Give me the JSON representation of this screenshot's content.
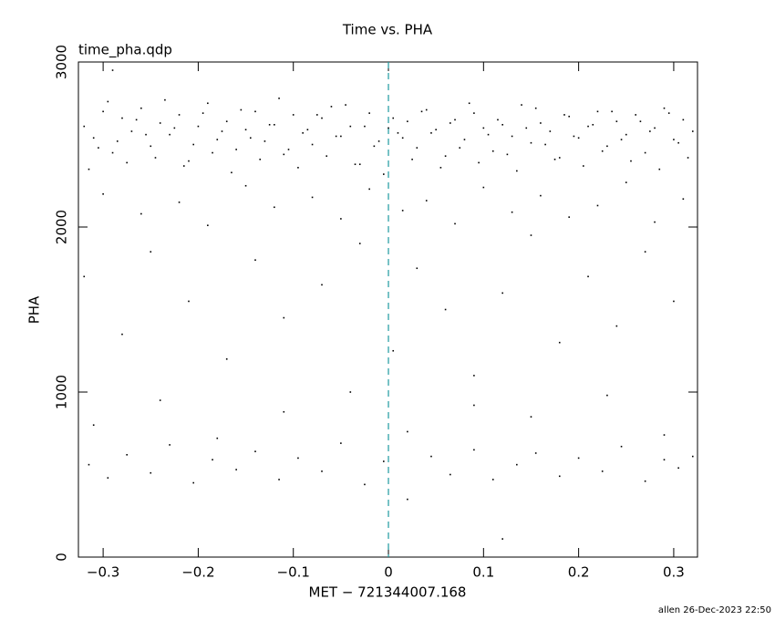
{
  "chart_data": {
    "type": "scatter",
    "title": "Time vs. PHA",
    "annotation": "time_pha.qdp",
    "x_label": "MET − 721344007.168",
    "y_label": "PHA",
    "footer": "allen 26-Dec-2023 22:50",
    "xlim": [
      -0.326,
      0.325
    ],
    "ylim": [
      0,
      3000
    ],
    "xticks": [
      {
        "value": -0.3,
        "label": "−0.3"
      },
      {
        "value": -0.2,
        "label": "−0.2"
      },
      {
        "value": -0.1,
        "label": "−0.1"
      },
      0,
      {
        "value": 0.1,
        "label": "0.1"
      },
      {
        "value": 0.2,
        "label": "0.2"
      },
      {
        "value": 0.3,
        "label": "0.3"
      }
    ],
    "yticks": [
      0,
      1000,
      2000,
      3000
    ],
    "vline": {
      "x": 0,
      "color": "#1e9aa0"
    },
    "series": [
      {
        "color": "#000000",
        "x": [
          -0.32,
          -0.31,
          -0.3,
          -0.29,
          -0.28,
          -0.27,
          -0.26,
          -0.25,
          -0.24,
          -0.23,
          -0.22,
          -0.21,
          -0.2,
          -0.19,
          -0.18,
          -0.17,
          -0.16,
          -0.15,
          -0.14,
          -0.13,
          -0.12,
          -0.11,
          -0.1,
          -0.09,
          -0.08,
          -0.07,
          -0.06,
          -0.05,
          -0.04,
          -0.03,
          -0.02,
          -0.01,
          0,
          0.01,
          0.02,
          0.03,
          0.04,
          0.05,
          0.06,
          0.07,
          0.08,
          0.09,
          0.1,
          0.11,
          0.12,
          0.13,
          0.14,
          0.15,
          0.16,
          0.17,
          0.18,
          0.19,
          0.2,
          0.21,
          0.22,
          0.23,
          0.24,
          0.25,
          0.26,
          0.27,
          0.28,
          0.29,
          0.3,
          0.31,
          0.32,
          -0.315,
          -0.305,
          -0.295,
          -0.285,
          -0.275,
          -0.265,
          -0.255,
          -0.245,
          -0.235,
          -0.225,
          -0.215,
          -0.205,
          -0.195,
          -0.185,
          -0.175,
          -0.165,
          -0.155,
          -0.145,
          -0.135,
          -0.125,
          -0.115,
          -0.105,
          -0.095,
          -0.085,
          -0.075,
          -0.065,
          -0.055,
          -0.045,
          -0.035,
          -0.025,
          -0.015,
          -0.005,
          0.005,
          0.015,
          0.025,
          0.035,
          0.045,
          0.055,
          0.065,
          0.075,
          0.085,
          0.095,
          0.105,
          0.115,
          0.125,
          0.135,
          0.145,
          0.155,
          0.165,
          0.175,
          0.185,
          0.195,
          0.205,
          0.215,
          0.225,
          0.235,
          0.245,
          0.255,
          0.265,
          0.275,
          0.285,
          0.295,
          0.305,
          0.315,
          -0.3,
          -0.26,
          -0.22,
          -0.19,
          -0.15,
          -0.12,
          -0.08,
          -0.05,
          -0.02,
          0.015,
          0.04,
          0.07,
          0.1,
          0.13,
          0.16,
          0.19,
          0.22,
          0.25,
          0.28,
          0.31,
          -0.32,
          -0.28,
          -0.25,
          -0.21,
          -0.17,
          -0.14,
          -0.11,
          -0.07,
          -0.03,
          0.005,
          0.03,
          0.06,
          0.09,
          0.12,
          0.15,
          0.18,
          0.21,
          0.24,
          0.27,
          0.3,
          -0.31,
          -0.24,
          -0.18,
          -0.11,
          -0.04,
          0.02,
          0.09,
          0.15,
          0.23,
          0.29,
          -0.315,
          -0.295,
          -0.275,
          -0.25,
          -0.23,
          -0.205,
          -0.185,
          -0.16,
          -0.14,
          -0.115,
          -0.095,
          -0.07,
          -0.05,
          -0.025,
          -0.005,
          0.02,
          0.045,
          0.065,
          0.09,
          0.11,
          0.135,
          0.155,
          0.18,
          0.2,
          0.225,
          0.245,
          0.27,
          0.29,
          0.305,
          0.32,
          0.12,
          -0.29
        ],
        "values": [
          2610,
          2540,
          2700,
          2450,
          2660,
          2580,
          2720,
          2490,
          2630,
          2560,
          2680,
          2400,
          2610,
          2750,
          2530,
          2640,
          2470,
          2590,
          2700,
          2520,
          2620,
          2440,
          2680,
          2570,
          2500,
          2660,
          2730,
          2550,
          2610,
          2380,
          2690,
          2520,
          2600,
          2570,
          2640,
          2480,
          2710,
          2590,
          2430,
          2650,
          2530,
          2690,
          2600,
          2460,
          2620,
          2550,
          2740,
          2510,
          2630,
          2580,
          2420,
          2670,
          2540,
          2610,
          2700,
          2490,
          2640,
          2560,
          2680,
          2450,
          2600,
          2720,
          2530,
          2650,
          2580,
          2350,
          2480,
          2760,
          2520,
          2390,
          2650,
          2560,
          2420,
          2770,
          2600,
          2370,
          2500,
          2690,
          2450,
          2580,
          2330,
          2710,
          2540,
          2410,
          2620,
          2780,
          2470,
          2360,
          2590,
          2680,
          2430,
          2550,
          2740,
          2380,
          2610,
          2490,
          2320,
          2660,
          2540,
          2410,
          2700,
          2570,
          2360,
          2630,
          2480,
          2750,
          2390,
          2560,
          2650,
          2440,
          2340,
          2600,
          2720,
          2500,
          2410,
          2680,
          2550,
          2370,
          2620,
          2460,
          2700,
          2530,
          2400,
          2640,
          2580,
          2350,
          2690,
          2510,
          2420,
          2200,
          2080,
          2150,
          2010,
          2250,
          2120,
          2180,
          2050,
          2230,
          2100,
          2160,
          2020,
          2240,
          2090,
          2190,
          2060,
          2130,
          2270,
          2030,
          2170,
          1700,
          1350,
          1850,
          1550,
          1200,
          1800,
          1450,
          1650,
          1900,
          1250,
          1750,
          1500,
          1100,
          1600,
          1950,
          1300,
          1700,
          1400,
          1850,
          1550,
          800,
          950,
          720,
          880,
          1000,
          760,
          920,
          850,
          980,
          740,
          560,
          480,
          620,
          510,
          680,
          450,
          590,
          530,
          640,
          470,
          600,
          520,
          690,
          440,
          580,
          350,
          610,
          500,
          650,
          470,
          560,
          630,
          490,
          600,
          520,
          670,
          460,
          590,
          540,
          610,
          110,
          2950
        ]
      }
    ]
  }
}
